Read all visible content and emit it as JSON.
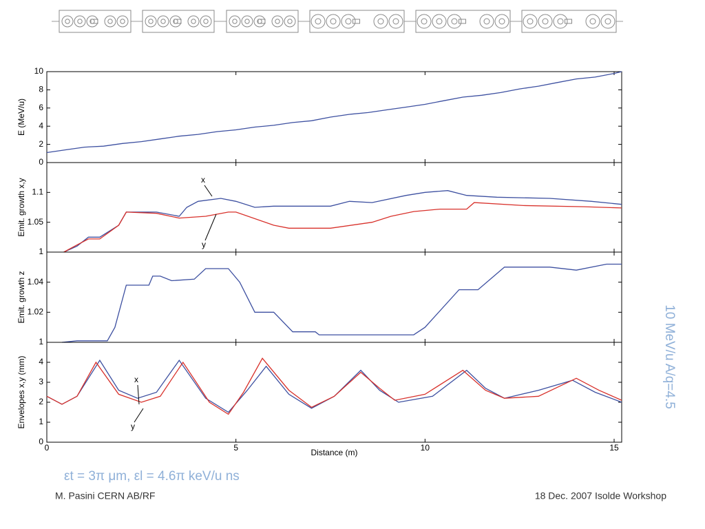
{
  "chart_data": [
    {
      "type": "line",
      "ylabel": "E (MeV/u)",
      "xlim": [
        0,
        15.2
      ],
      "ylim": [
        0,
        10
      ],
      "yticks": [
        0,
        2,
        4,
        6,
        8,
        10
      ],
      "series": [
        {
          "name": "E",
          "color": "#3c4fa0",
          "x": [
            0,
            0.5,
            1,
            1.5,
            2,
            2.5,
            3,
            3.5,
            4,
            4.5,
            5,
            5.5,
            6,
            6.5,
            7,
            7.5,
            8,
            8.5,
            9,
            9.5,
            10,
            10.5,
            11,
            11.5,
            12,
            12.5,
            13,
            13.5,
            14,
            14.5,
            15,
            15.2
          ],
          "values": [
            1.1,
            1.4,
            1.7,
            1.8,
            2.1,
            2.3,
            2.6,
            2.9,
            3.1,
            3.4,
            3.6,
            3.9,
            4.1,
            4.4,
            4.6,
            5.0,
            5.3,
            5.5,
            5.8,
            6.1,
            6.4,
            6.8,
            7.2,
            7.4,
            7.7,
            8.1,
            8.4,
            8.8,
            9.2,
            9.4,
            9.8,
            10
          ]
        }
      ]
    },
    {
      "type": "line",
      "ylabel": "Emit. growth x,y",
      "xlim": [
        0,
        15.2
      ],
      "ylim": [
        1,
        1.15
      ],
      "yticks": [
        1,
        1.05,
        1.1
      ],
      "annotations": [
        "x",
        "y"
      ],
      "series": [
        {
          "name": "x",
          "color": "#3c4fa0",
          "x": [
            0.45,
            0.8,
            1.1,
            1.4,
            1.9,
            2.1,
            2.9,
            3.5,
            3.7,
            4.0,
            4.6,
            5.0,
            5.5,
            6.0,
            7.5,
            8.0,
            8.6,
            9.5,
            10.0,
            10.6,
            11.1,
            11.9,
            13.3,
            14.4,
            15.2
          ],
          "values": [
            1.0,
            1.01,
            1.025,
            1.025,
            1.045,
            1.067,
            1.067,
            1.06,
            1.075,
            1.085,
            1.09,
            1.085,
            1.075,
            1.077,
            1.077,
            1.085,
            1.083,
            1.095,
            1.1,
            1.103,
            1.095,
            1.092,
            1.09,
            1.085,
            1.08
          ]
        },
        {
          "name": "y",
          "color": "#d8302a",
          "x": [
            0.45,
            0.8,
            1.1,
            1.4,
            1.9,
            2.1,
            2.9,
            3.5,
            4.2,
            4.8,
            5.0,
            6.0,
            6.4,
            7.5,
            8.6,
            9.1,
            9.7,
            10.4,
            11.1,
            11.3,
            12.6,
            14.2,
            15.2
          ],
          "values": [
            1.0,
            1.012,
            1.022,
            1.022,
            1.045,
            1.067,
            1.065,
            1.057,
            1.06,
            1.067,
            1.067,
            1.045,
            1.04,
            1.04,
            1.05,
            1.06,
            1.068,
            1.072,
            1.072,
            1.083,
            1.078,
            1.076,
            1.074
          ]
        }
      ]
    },
    {
      "type": "line",
      "ylabel": "Emit. growth z",
      "xlim": [
        0,
        15.2
      ],
      "ylim": [
        1,
        1.06
      ],
      "yticks": [
        1,
        1.02,
        1.04
      ],
      "series": [
        {
          "name": "z",
          "color": "#3c4fa0",
          "x": [
            0.4,
            0.8,
            1.6,
            1.8,
            2.1,
            2.7,
            2.8,
            3.0,
            3.3,
            3.9,
            4.2,
            4.8,
            5.1,
            5.5,
            6.0,
            6.5,
            7.1,
            7.2,
            9.7,
            10.0,
            10.9,
            11.4,
            12.1,
            13.3,
            14.0,
            14.8,
            15.2
          ],
          "values": [
            1.0,
            1.001,
            1.001,
            1.01,
            1.038,
            1.038,
            1.044,
            1.044,
            1.041,
            1.042,
            1.049,
            1.049,
            1.04,
            1.02,
            1.02,
            1.007,
            1.007,
            1.005,
            1.005,
            1.01,
            1.035,
            1.035,
            1.05,
            1.05,
            1.048,
            1.052,
            1.052
          ]
        }
      ]
    },
    {
      "type": "line",
      "ylabel": "Envelopes x,y (mm)",
      "xlabel": "Distance (m)",
      "xlim": [
        0,
        15.2
      ],
      "ylim": [
        0,
        5
      ],
      "yticks": [
        0,
        1,
        2,
        3,
        4
      ],
      "xticks": [
        0,
        5,
        10,
        15
      ],
      "annotations": [
        "x",
        "y"
      ],
      "series": [
        {
          "name": "x",
          "color": "#3c4fa0",
          "x": [
            0,
            0.4,
            0.8,
            1.4,
            1.9,
            2.4,
            2.9,
            3.5,
            4.2,
            4.8,
            5.3,
            5.8,
            6.4,
            7.0,
            7.6,
            8.3,
            8.8,
            9.3,
            10.2,
            11.1,
            11.6,
            12.1,
            13.0,
            13.9,
            14.5,
            15.2
          ],
          "values": [
            2.3,
            1.9,
            2.3,
            4.1,
            2.6,
            2.2,
            2.5,
            4.1,
            2.2,
            1.5,
            2.6,
            3.8,
            2.4,
            1.7,
            2.3,
            3.6,
            2.6,
            2.0,
            2.3,
            3.6,
            2.7,
            2.2,
            2.6,
            3.1,
            2.5,
            2.0
          ]
        },
        {
          "name": "y",
          "color": "#d8302a",
          "x": [
            0,
            0.4,
            0.8,
            1.3,
            1.9,
            2.5,
            3.0,
            3.6,
            4.3,
            4.8,
            5.2,
            5.7,
            6.4,
            7.0,
            7.6,
            8.3,
            8.8,
            9.2,
            10.0,
            11.0,
            11.6,
            12.1,
            13.0,
            14.0,
            14.6,
            15.2
          ],
          "values": [
            2.3,
            1.9,
            2.3,
            4.0,
            2.4,
            2.0,
            2.3,
            4.0,
            2.0,
            1.4,
            2.5,
            4.2,
            2.6,
            1.75,
            2.3,
            3.5,
            2.7,
            2.1,
            2.4,
            3.6,
            2.6,
            2.2,
            2.3,
            3.2,
            2.6,
            2.1
          ]
        }
      ]
    }
  ],
  "slide": {
    "side_label": "10 MeV/u A/q=4.5",
    "emittance": "εt = 3π μm, εl = 4.6π keV/u ns",
    "footer_left": "M. Pasini CERN AB/RF",
    "footer_right": "18 Dec. 2007 Isolde Workshop"
  }
}
